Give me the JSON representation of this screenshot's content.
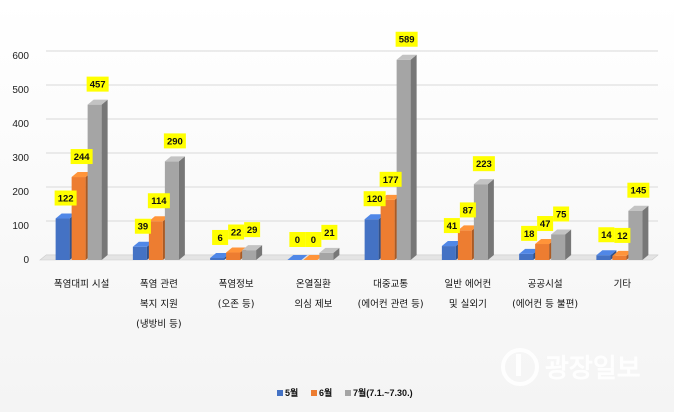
{
  "chart_data": {
    "type": "bar",
    "style": "3d-clustered",
    "categories": [
      [
        "폭염대피 시설"
      ],
      [
        "폭염 관련",
        "복지 지원",
        "(냉방비 등)"
      ],
      [
        "폭염정보",
        "(오존 등)"
      ],
      [
        "온열질환",
        "의심 제보"
      ],
      [
        "대중교통",
        "(에어컨 관련 등)"
      ],
      [
        "일반 에어컨",
        "및 실외기"
      ],
      [
        "공공시설",
        "(에어컨 등 불편)"
      ],
      [
        "기타"
      ]
    ],
    "series": [
      {
        "name": "5월",
        "color": "#4472c4",
        "values": [
          122,
          39,
          6,
          0,
          120,
          41,
          18,
          14
        ]
      },
      {
        "name": "6월",
        "color": "#ed7d31",
        "values": [
          244,
          114,
          22,
          0,
          177,
          87,
          47,
          12
        ]
      },
      {
        "name": "7월(7.1.~7.30.)",
        "color": "#a5a5a5",
        "values": [
          457,
          290,
          29,
          21,
          589,
          223,
          75,
          145
        ]
      }
    ],
    "ylim": [
      0,
      600
    ],
    "yticks": [
      0,
      100,
      200,
      300,
      400,
      500,
      600
    ],
    "grid": true,
    "legend_position": "bottom-center",
    "data_label_bg": "#ffff00"
  },
  "watermark": {
    "text": "광장일보",
    "icon": "stylized-g-logo"
  }
}
